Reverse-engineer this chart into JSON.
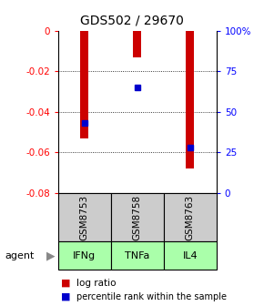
{
  "title": "GDS502 / 29670",
  "samples": [
    "GSM8753",
    "GSM8758",
    "GSM8763"
  ],
  "agents": [
    "IFNg",
    "TNFa",
    "IL4"
  ],
  "log_ratios": [
    -0.053,
    -0.013,
    -0.068
  ],
  "percentile_ranks": [
    43,
    65,
    28
  ],
  "ylim_left": [
    -0.08,
    0
  ],
  "ylim_right": [
    0,
    100
  ],
  "bar_color": "#cc0000",
  "marker_color": "#0000cc",
  "agent_bg_color": "#aaffaa",
  "sample_bg_color": "#cccccc",
  "yticks_left": [
    0,
    -0.02,
    -0.04,
    -0.06,
    -0.08
  ],
  "yticks_right": [
    0,
    25,
    50,
    75,
    100
  ],
  "legend_log_ratio": "log ratio",
  "legend_percentile": "percentile rank within the sample",
  "agent_label": "agent",
  "bar_width": 0.15
}
